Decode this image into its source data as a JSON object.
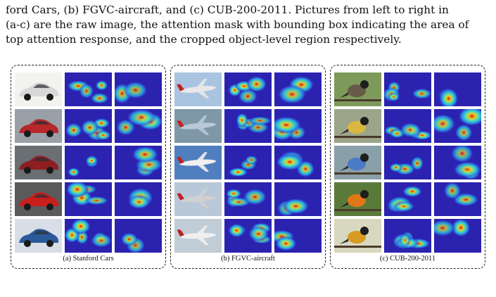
{
  "caption": {
    "lines": [
      "ford Cars, (b) FGVC-aircraft, and (c) CUB-200-2011. Pictures from left to right in",
      "(a-c) are the raw image, the attention mask with bounding box indicating the area of",
      "top attention response, and the cropped object-level region respectively."
    ]
  },
  "panels": [
    {
      "label": "(a) Stanford Cars",
      "dataset": "cars",
      "raw_colors": [
        "#d8d8d8",
        "#b8272a",
        "#8e1e22",
        "#c81e1c",
        "#2a5a9a"
      ],
      "raw_bg": [
        "#f2f2ef",
        "#9aa0a8",
        "#6a6f74",
        "#5a5a5a",
        "#d8dde6"
      ]
    },
    {
      "label": "(b) FGVC-aircraft",
      "dataset": "aircraft",
      "raw_colors": [
        "#e8e8e8",
        "#b9c8d8",
        "#f0f0f0",
        "#d0d0d0",
        "#efefef"
      ],
      "raw_bg": [
        "#a8c4e0",
        "#7e98a8",
        "#4f7fbf",
        "#b8c8d8",
        "#c0ccd6"
      ]
    },
    {
      "label": "(c) CUB-200-2011",
      "dataset": "birds",
      "raw_colors": [
        "#6a5a4a",
        "#d8b840",
        "#4a7ac8",
        "#e07818",
        "#d89a20"
      ],
      "raw_bg": [
        "#7e9a5a",
        "#9ca58a",
        "#8aa0a8",
        "#5a7a3a",
        "#d8d8c0"
      ]
    }
  ]
}
